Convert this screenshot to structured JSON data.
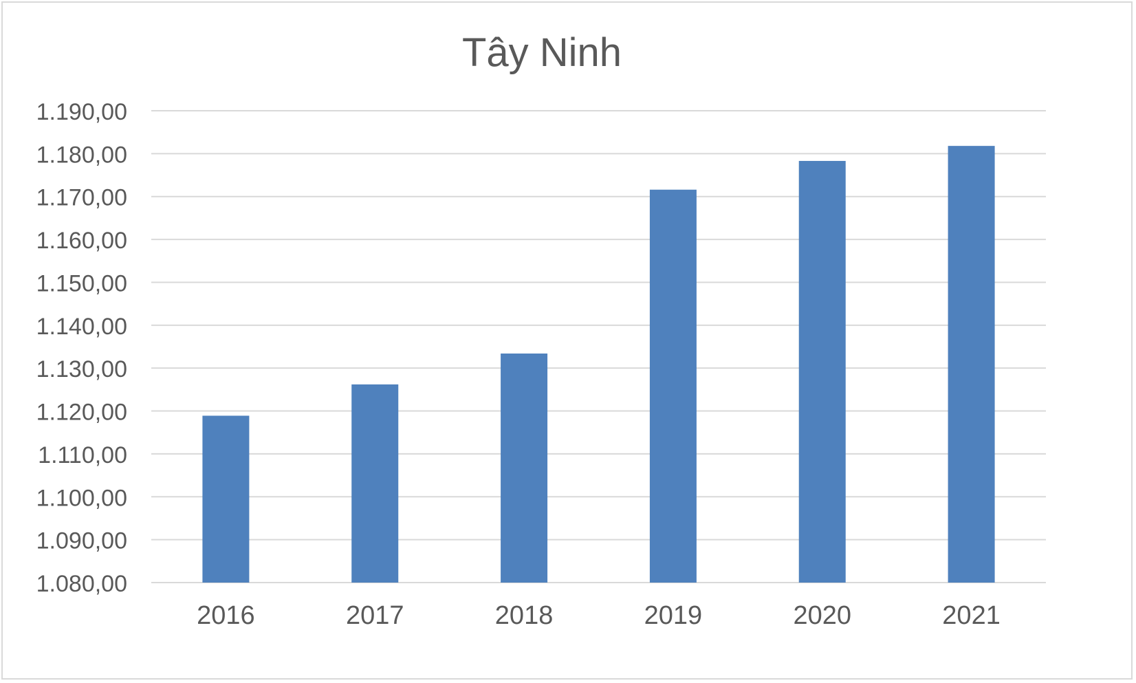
{
  "chart_data": {
    "type": "bar",
    "title": "Tây Ninh",
    "categories": [
      "2016",
      "2017",
      "2018",
      "2019",
      "2020",
      "2021"
    ],
    "values": [
      1118.9,
      1126.2,
      1133.4,
      1171.6,
      1178.3,
      1181.8
    ],
    "ylim": [
      1080,
      1190
    ],
    "yticks": [
      1080,
      1090,
      1100,
      1110,
      1120,
      1130,
      1140,
      1150,
      1160,
      1170,
      1180,
      1190
    ],
    "ytick_labels": [
      "1.080,00",
      "1.090,00",
      "1.100,00",
      "1.110,00",
      "1.120,00",
      "1.130,00",
      "1.140,00",
      "1.150,00",
      "1.160,00",
      "1.170,00",
      "1.180,00",
      "1.190,00"
    ],
    "xlabel": "",
    "ylabel": "",
    "grid": true,
    "legend": "none",
    "colors": {
      "bar": "#4f81bd",
      "grid": "#d9d9d9",
      "text": "#595959",
      "border": "#d9d9d9"
    }
  }
}
